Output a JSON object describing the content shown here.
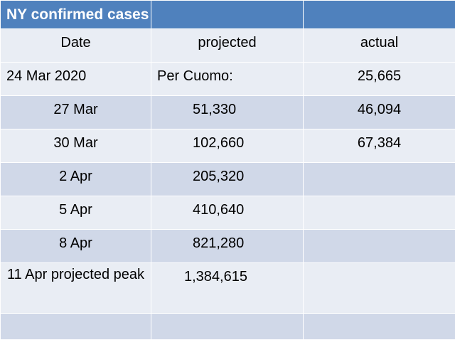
{
  "table": {
    "title": "NY confirmed cases",
    "headers": {
      "date": "Date",
      "projected": "projected",
      "actual": "actual"
    },
    "rows": [
      {
        "date": "24 Mar 2020",
        "projected": "Per Cuomo:",
        "actual": "25,665"
      },
      {
        "date": "27 Mar",
        "projected": "51,330",
        "actual": "46,094"
      },
      {
        "date": "30 Mar",
        "projected": "102,660",
        "actual": "67,384"
      },
      {
        "date": "2 Apr",
        "projected": "205,320",
        "actual": ""
      },
      {
        "date": "5 Apr",
        "projected": "410,640",
        "actual": ""
      },
      {
        "date": "8 Apr",
        "projected": "821,280",
        "actual": ""
      },
      {
        "date": "11 Apr projected peak",
        "projected": "1,384,615",
        "actual": ""
      },
      {
        "date": "",
        "projected": "",
        "actual": ""
      }
    ]
  },
  "colors": {
    "header": "#4f81bd",
    "band_dark": "#d0d8e8",
    "band_light": "#e9edf4"
  }
}
